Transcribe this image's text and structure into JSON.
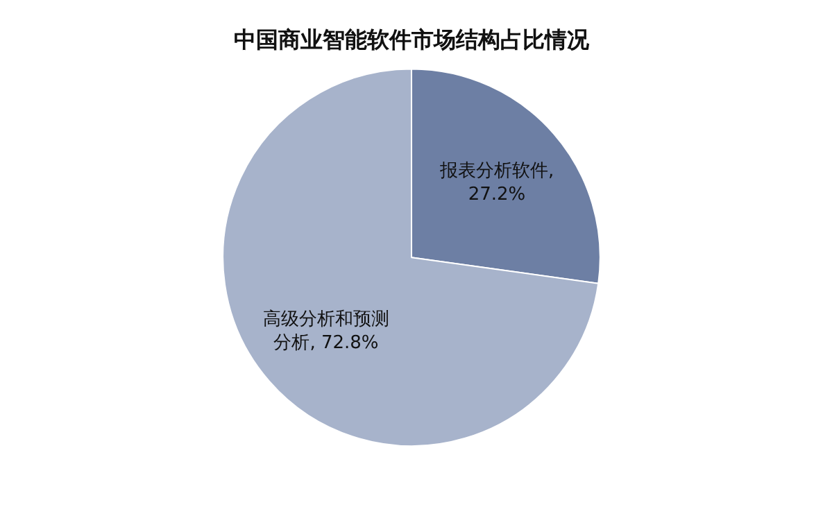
{
  "chart_data": {
    "type": "pie",
    "title": "中国商业智能软件市场结构占比情况",
    "categories": [
      "报表分析软件",
      "高级分析和预测分析"
    ],
    "values": [
      27.2,
      72.8
    ],
    "colors": [
      "#6d7fa4",
      "#a7b3cb"
    ],
    "value_labels": [
      ", 27.2%",
      ", 72.8%"
    ],
    "legend": false
  }
}
